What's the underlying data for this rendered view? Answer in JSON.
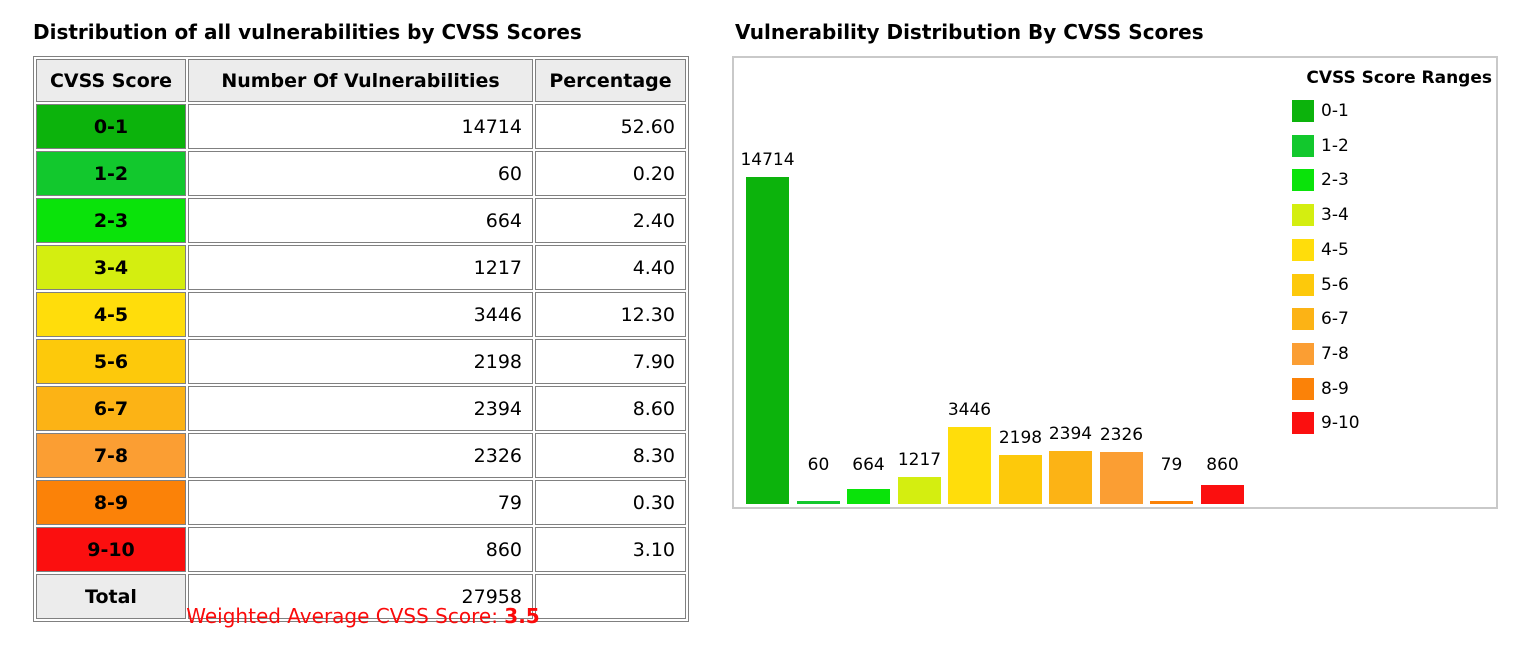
{
  "left_panel": {
    "title": "Distribution of all vulnerabilities by CVSS Scores",
    "table": {
      "headers": [
        "CVSS Score",
        "Number Of Vulnerabilities",
        "Percentage"
      ],
      "rows": [
        {
          "range": "0-1",
          "count": "14714",
          "percentage": "52.60",
          "color": "#0cb30c"
        },
        {
          "range": "1-2",
          "count": "60",
          "percentage": "0.20",
          "color": "#12c82d"
        },
        {
          "range": "2-3",
          "count": "664",
          "percentage": "2.40",
          "color": "#0ae30a"
        },
        {
          "range": "3-4",
          "count": "1217",
          "percentage": "4.40",
          "color": "#d4ee10"
        },
        {
          "range": "4-5",
          "count": "3446",
          "percentage": "12.30",
          "color": "#ffdd0b"
        },
        {
          "range": "5-6",
          "count": "2198",
          "percentage": "7.90",
          "color": "#fdc90b"
        },
        {
          "range": "6-7",
          "count": "2394",
          "percentage": "8.60",
          "color": "#fcb315"
        },
        {
          "range": "7-8",
          "count": "2326",
          "percentage": "8.30",
          "color": "#fb9e33"
        },
        {
          "range": "8-9",
          "count": "79",
          "percentage": "0.30",
          "color": "#fb8208"
        },
        {
          "range": "9-10",
          "count": "860",
          "percentage": "3.10",
          "color": "#fb0f0f"
        }
      ],
      "total_row": {
        "label": "Total",
        "count": "27958",
        "percentage": ""
      }
    },
    "footnote": {
      "label": "Weighted Average CVSS Score: ",
      "value": "3.5",
      "color": "#fb0a0a"
    }
  },
  "right_panel": {
    "title": "Vulnerability Distribution By CVSS Scores"
  },
  "chart_data": {
    "type": "bar",
    "title": "Vulnerability Distribution By CVSS Scores",
    "categories": [
      "0-1",
      "1-2",
      "2-3",
      "3-4",
      "4-5",
      "5-6",
      "6-7",
      "7-8",
      "8-9",
      "9-10"
    ],
    "values": [
      14714,
      60,
      664,
      1217,
      3446,
      2198,
      2394,
      2326,
      79,
      860
    ],
    "colors": [
      "#0cb30c",
      "#12c82d",
      "#0ae30a",
      "#d4ee10",
      "#ffdd0b",
      "#fdc90b",
      "#fcb315",
      "#fb9e33",
      "#fb8208",
      "#fb0f0f"
    ],
    "bar_value_labels": [
      "14714",
      "60",
      "664",
      "1217",
      "3446",
      "2198",
      "2394",
      "2326",
      "79",
      "860"
    ],
    "legend_title": "CVSS Score Ranges",
    "legend_position": "top-right",
    "xlabel": "",
    "ylabel": "",
    "ylim": [
      0,
      14714
    ],
    "axes_shown": false,
    "grid": false
  }
}
